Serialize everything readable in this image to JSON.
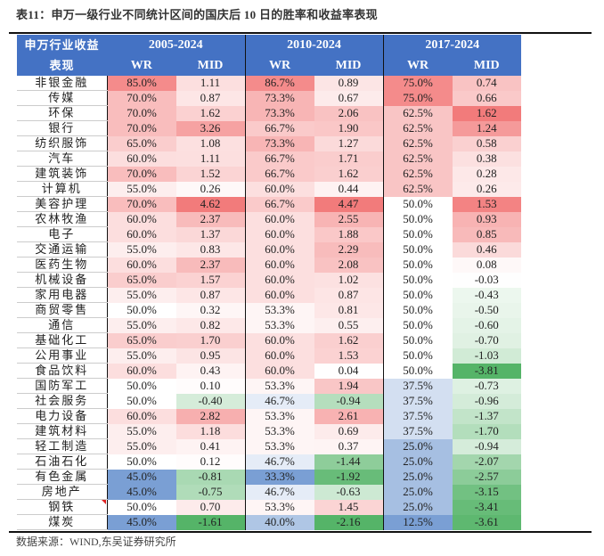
{
  "title": "表11：申万一级行业不同统计区间的国庆后 10 日的胜率和收益率表现",
  "header": {
    "name_col_line1": "申万行业收益",
    "name_col_line2": "表现",
    "periods": [
      "2005-2024",
      "2010-2024",
      "2017-2024"
    ],
    "wr_label": "WR",
    "mid_label": "MID"
  },
  "colors": {
    "header_bg": "#4472c4",
    "positive": "#f06464",
    "negative": "#55b468",
    "low_wr": "#7a9fd4"
  },
  "rows": [
    {
      "name": "非银金融",
      "v": [
        "85.0%",
        "1.11",
        "86.7%",
        "0.89",
        "75.0%",
        "0.74"
      ]
    },
    {
      "name": "传媒",
      "v": [
        "70.0%",
        "0.87",
        "73.3%",
        "0.67",
        "75.0%",
        "0.66"
      ]
    },
    {
      "name": "环保",
      "v": [
        "70.0%",
        "1.62",
        "73.3%",
        "2.06",
        "62.5%",
        "1.62"
      ]
    },
    {
      "name": "银行",
      "v": [
        "70.0%",
        "3.26",
        "66.7%",
        "1.90",
        "62.5%",
        "1.24"
      ]
    },
    {
      "name": "纺织服饰",
      "v": [
        "65.0%",
        "1.08",
        "73.3%",
        "1.27",
        "62.5%",
        "0.58"
      ]
    },
    {
      "name": "汽车",
      "v": [
        "60.0%",
        "1.11",
        "66.7%",
        "1.71",
        "62.5%",
        "0.38"
      ]
    },
    {
      "name": "建筑装饰",
      "v": [
        "70.0%",
        "1.52",
        "66.7%",
        "1.62",
        "62.5%",
        "0.28"
      ]
    },
    {
      "name": "计算机",
      "v": [
        "55.0%",
        "0.26",
        "60.0%",
        "0.44",
        "62.5%",
        "0.26"
      ]
    },
    {
      "name": "美容护理",
      "v": [
        "70.0%",
        "4.62",
        "66.7%",
        "4.47",
        "50.0%",
        "1.53"
      ]
    },
    {
      "name": "农林牧渔",
      "v": [
        "60.0%",
        "2.37",
        "60.0%",
        "2.55",
        "50.0%",
        "0.93"
      ]
    },
    {
      "name": "电子",
      "v": [
        "60.0%",
        "1.37",
        "60.0%",
        "1.88",
        "50.0%",
        "0.85"
      ]
    },
    {
      "name": "交通运输",
      "v": [
        "55.0%",
        "0.83",
        "60.0%",
        "2.29",
        "50.0%",
        "0.46"
      ]
    },
    {
      "name": "医药生物",
      "v": [
        "60.0%",
        "2.37",
        "60.0%",
        "2.08",
        "50.0%",
        "0.08"
      ]
    },
    {
      "name": "机械设备",
      "v": [
        "65.0%",
        "1.57",
        "60.0%",
        "1.02",
        "50.0%",
        "-0.03"
      ]
    },
    {
      "name": "家用电器",
      "v": [
        "55.0%",
        "0.87",
        "60.0%",
        "0.87",
        "50.0%",
        "-0.43"
      ]
    },
    {
      "name": "商贸零售",
      "v": [
        "50.0%",
        "0.32",
        "53.3%",
        "0.81",
        "50.0%",
        "-0.50"
      ]
    },
    {
      "name": "通信",
      "v": [
        "55.0%",
        "0.82",
        "53.3%",
        "0.55",
        "50.0%",
        "-0.60"
      ]
    },
    {
      "name": "基础化工",
      "v": [
        "65.0%",
        "1.70",
        "60.0%",
        "1.62",
        "50.0%",
        "-0.70"
      ]
    },
    {
      "name": "公用事业",
      "v": [
        "55.0%",
        "0.95",
        "60.0%",
        "1.53",
        "50.0%",
        "-1.03"
      ]
    },
    {
      "name": "食品饮料",
      "v": [
        "60.0%",
        "0.43",
        "60.0%",
        "0.04",
        "50.0%",
        "-3.81"
      ]
    },
    {
      "name": "国防军工",
      "v": [
        "50.0%",
        "0.10",
        "53.3%",
        "1.94",
        "37.5%",
        "-0.73"
      ]
    },
    {
      "name": "社会服务",
      "v": [
        "50.0%",
        "-0.40",
        "46.7%",
        "-0.94",
        "37.5%",
        "-0.96"
      ]
    },
    {
      "name": "电力设备",
      "v": [
        "60.0%",
        "2.82",
        "53.3%",
        "2.61",
        "37.5%",
        "-1.37"
      ]
    },
    {
      "name": "建筑材料",
      "v": [
        "55.0%",
        "1.18",
        "53.3%",
        "0.69",
        "37.5%",
        "-1.70"
      ]
    },
    {
      "name": "轻工制造",
      "v": [
        "55.0%",
        "0.41",
        "53.3%",
        "0.37",
        "25.0%",
        "-0.94"
      ]
    },
    {
      "name": "石油石化",
      "v": [
        "50.0%",
        "0.12",
        "46.7%",
        "-1.44",
        "25.0%",
        "-2.07"
      ]
    },
    {
      "name": "有色金属",
      "v": [
        "45.0%",
        "-0.81",
        "33.3%",
        "-1.92",
        "25.0%",
        "-2.57"
      ]
    },
    {
      "name": "房地产",
      "v": [
        "45.0%",
        "-0.75",
        "46.7%",
        "-0.63",
        "25.0%",
        "-3.15"
      ]
    },
    {
      "name": "钢铁",
      "v": [
        "50.0%",
        "0.70",
        "53.3%",
        "1.45",
        "25.0%",
        "-3.41"
      ]
    },
    {
      "name": "煤炭",
      "v": [
        "45.0%",
        "-1.61",
        "40.0%",
        "-2.16",
        "12.5%",
        "-3.61"
      ]
    }
  ],
  "source": "数据来源：WIND,东吴证券研究所"
}
